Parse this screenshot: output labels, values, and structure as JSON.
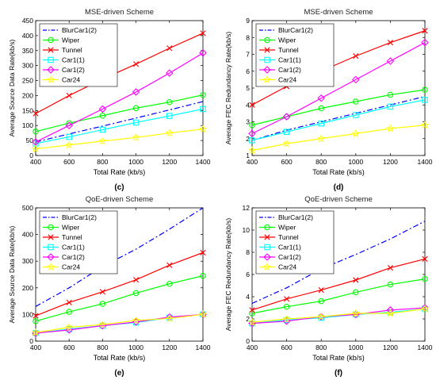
{
  "chart_data": [
    {
      "panel_label": "(c)",
      "type": "line",
      "title": "MSE-driven Scheme",
      "xlabel": "Total Rate (kb/s)",
      "ylabel": "Average Source Data Rate(kb/s)",
      "xlim": [
        400,
        1400
      ],
      "ylim": [
        0,
        450
      ],
      "xticks": [
        400,
        600,
        800,
        1000,
        1200,
        1400
      ],
      "yticks": [
        0,
        50,
        100,
        150,
        200,
        250,
        300,
        350,
        400,
        450
      ],
      "grid": false,
      "legend_position": "top-left",
      "x": [
        400,
        600,
        800,
        1000,
        1200,
        1400
      ],
      "series": [
        {
          "name": "BlurCar1(2)",
          "values": [
            45,
            72,
            98,
            125,
            152,
            180
          ]
        },
        {
          "name": "Wiper",
          "values": [
            80,
            108,
            133,
            158,
            178,
            202
          ]
        },
        {
          "name": "Tunnel",
          "values": [
            140,
            200,
            255,
            305,
            358,
            408
          ]
        },
        {
          "name": "Car1(1)",
          "values": [
            40,
            62,
            86,
            110,
            132,
            155
          ]
        },
        {
          "name": "Car1(2)",
          "values": [
            45,
            100,
            155,
            212,
            275,
            342
          ]
        },
        {
          "name": "Car24",
          "values": [
            22,
            35,
            48,
            60,
            75,
            88
          ]
        }
      ]
    },
    {
      "panel_label": "(d)",
      "type": "line",
      "title": "MSE-driven Scheme",
      "xlabel": "Total Rate (kb/s)",
      "ylabel": "Average FEC Redundancy Rate(kb/s)",
      "xlim": [
        400,
        1400
      ],
      "ylim": [
        1,
        9
      ],
      "xticks": [
        400,
        600,
        800,
        1000,
        1200,
        1400
      ],
      "yticks": [
        1,
        2,
        3,
        4,
        5,
        6,
        7,
        8,
        9
      ],
      "grid": false,
      "legend_position": "top-left",
      "x": [
        400,
        600,
        800,
        1000,
        1200,
        1400
      ],
      "series": [
        {
          "name": "BlurCar1(2)",
          "values": [
            1.9,
            2.5,
            3.0,
            3.5,
            4.0,
            4.5
          ]
        },
        {
          "name": "Wiper",
          "values": [
            2.8,
            3.3,
            3.8,
            4.2,
            4.6,
            4.9
          ]
        },
        {
          "name": "Tunnel",
          "values": [
            4.0,
            5.1,
            6.0,
            6.9,
            7.7,
            8.4
          ]
        },
        {
          "name": "Car1(1)",
          "values": [
            1.9,
            2.4,
            2.9,
            3.4,
            3.9,
            4.3
          ]
        },
        {
          "name": "Car1(2)",
          "values": [
            2.3,
            3.3,
            4.4,
            5.5,
            6.6,
            7.7
          ]
        },
        {
          "name": "Car24",
          "values": [
            1.3,
            1.7,
            2.0,
            2.3,
            2.6,
            2.8
          ]
        }
      ]
    },
    {
      "panel_label": "(e)",
      "type": "line",
      "title": "QoE-driven Scheme",
      "xlabel": "Total Rate (kb/s)",
      "ylabel": "Average Source Data Rate(kb/s)",
      "xlim": [
        400,
        1400
      ],
      "ylim": [
        0,
        500
      ],
      "xticks": [
        400,
        600,
        800,
        1000,
        1200,
        1400
      ],
      "yticks": [
        0,
        100,
        200,
        300,
        400,
        500
      ],
      "grid": false,
      "legend_position": "top-left",
      "x": [
        400,
        600,
        800,
        1000,
        1200,
        1400
      ],
      "series": [
        {
          "name": "BlurCar1(2)",
          "values": [
            130,
            200,
            280,
            345,
            420,
            500
          ]
        },
        {
          "name": "Wiper",
          "values": [
            75,
            110,
            140,
            180,
            215,
            245
          ]
        },
        {
          "name": "Tunnel",
          "values": [
            95,
            145,
            185,
            230,
            285,
            332
          ]
        },
        {
          "name": "Car1(1)",
          "values": [
            30,
            45,
            58,
            70,
            88,
            100
          ]
        },
        {
          "name": "Car1(2)",
          "values": [
            30,
            42,
            58,
            72,
            90,
            100
          ]
        },
        {
          "name": "Car24",
          "values": [
            32,
            52,
            62,
            78,
            85,
            100
          ]
        }
      ]
    },
    {
      "panel_label": "(f)",
      "type": "line",
      "title": "QoE-driven Scheme",
      "xlabel": "Total Rate (kb/s)",
      "ylabel": "Average FEC Redundancy Rate(kb/s)",
      "xlim": [
        400,
        1400
      ],
      "ylim": [
        0,
        12
      ],
      "xticks": [
        400,
        600,
        800,
        1000,
        1200,
        1400
      ],
      "yticks": [
        0,
        2,
        4,
        6,
        8,
        10,
        12
      ],
      "grid": false,
      "legend_position": "top-left",
      "x": [
        400,
        600,
        800,
        1000,
        1200,
        1400
      ],
      "series": [
        {
          "name": "BlurCar1(2)",
          "values": [
            3.4,
            4.8,
            6.5,
            7.8,
            9.2,
            10.8
          ]
        },
        {
          "name": "Wiper",
          "values": [
            2.5,
            3.1,
            3.6,
            4.4,
            5.1,
            5.6
          ]
        },
        {
          "name": "Tunnel",
          "values": [
            2.8,
            3.8,
            4.6,
            5.5,
            6.6,
            7.4
          ]
        },
        {
          "name": "Car1(1)",
          "values": [
            1.6,
            1.9,
            2.1,
            2.4,
            2.6,
            2.9
          ]
        },
        {
          "name": "Car1(2)",
          "values": [
            1.6,
            1.8,
            2.2,
            2.4,
            2.8,
            3.0
          ]
        },
        {
          "name": "Car24",
          "values": [
            1.7,
            2.0,
            2.2,
            2.5,
            2.5,
            2.9
          ]
        }
      ]
    }
  ],
  "series_styles": [
    {
      "color": "#0000ff",
      "dash": "dashdot",
      "marker": "none"
    },
    {
      "color": "#00ff00",
      "dash": "solid",
      "marker": "circle"
    },
    {
      "color": "#ff0000",
      "dash": "solid",
      "marker": "x"
    },
    {
      "color": "#00ffff",
      "dash": "solid",
      "marker": "square"
    },
    {
      "color": "#ff00ff",
      "dash": "solid",
      "marker": "diamond"
    },
    {
      "color": "#ffff00",
      "dash": "solid",
      "marker": "star"
    }
  ]
}
